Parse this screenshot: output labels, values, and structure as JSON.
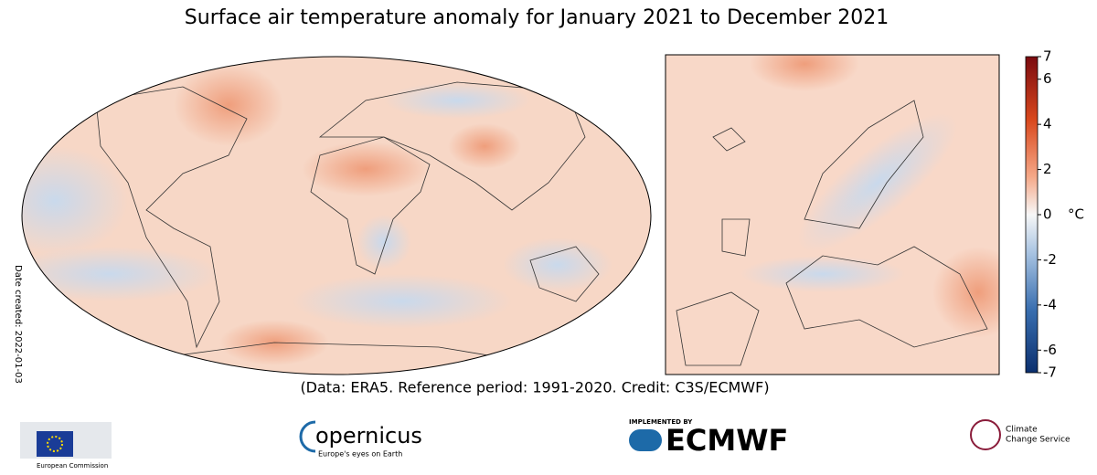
{
  "title": "Surface air temperature anomaly for January 2021 to December 2021",
  "colorbar": {
    "range": [
      -7,
      7
    ],
    "ticks": [
      7,
      6,
      4,
      2,
      0,
      -2,
      -4,
      -6,
      -7
    ],
    "unit": "°C"
  },
  "credit": "(Data: ERA5.  Reference period: 1991-2020.  Credit: C3S/ECMWF)",
  "date_created": "Date created: 2022-01-03",
  "logos": {
    "eu": "European Commission",
    "copernicus": "opernicus",
    "copernicus_tagline": "Europe's eyes on Earth",
    "ecmwf_pre": "IMPLEMENTED BY",
    "ecmwf": "ECMWF",
    "c3s_1": "Climate",
    "c3s_2": "Change Service"
  }
}
